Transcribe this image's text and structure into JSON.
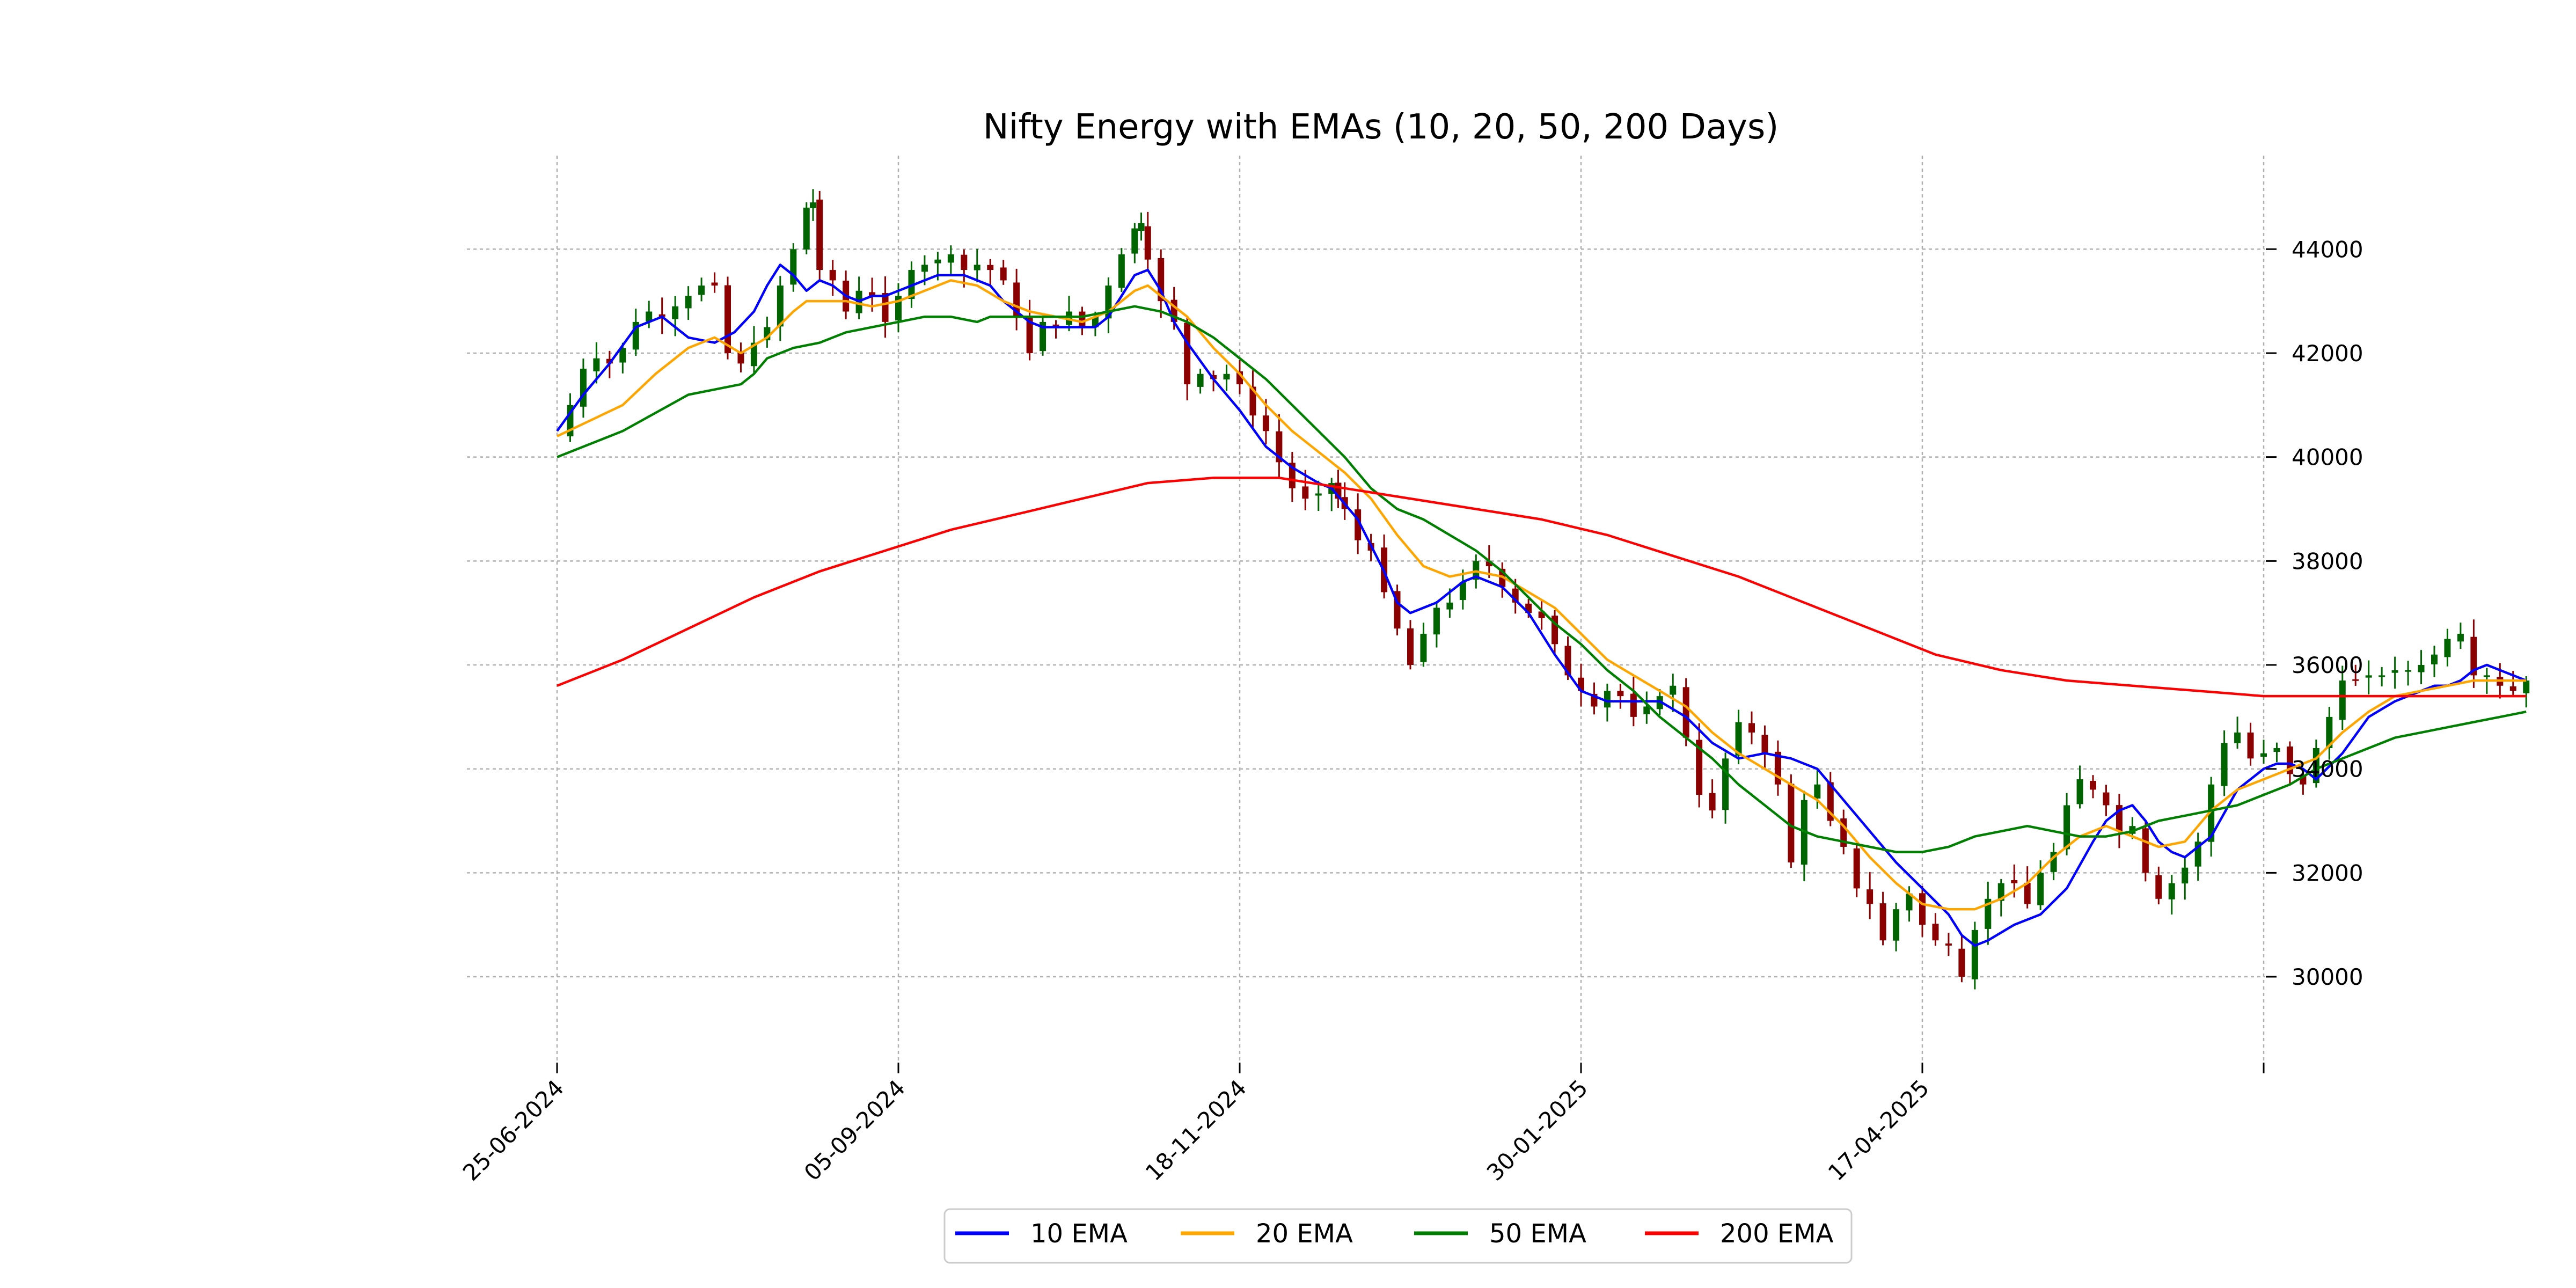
{
  "chart_data": {
    "type": "candlestick",
    "title": "Nifty Energy with EMAs (10, 20, 50, 200 Days)",
    "xlabel": "",
    "ylabel": "",
    "ylim": [
      28400,
      45800
    ],
    "xlim": [
      "2024-06-25",
      "2025-07-01"
    ],
    "x_ticks": [
      "25-06-2024",
      "05-09-2024",
      "18-11-2024",
      "30-01-2025",
      "17-04-2025",
      ""
    ],
    "y_ticks": [
      30000,
      32000,
      34000,
      36000,
      38000,
      40000,
      42000,
      44000
    ],
    "y_axis_side": "right",
    "grid": true,
    "legend_position": "bottom-center",
    "colors": {
      "up": "#006400",
      "down": "#8b0000"
    },
    "close": [
      [
        0,
        40400
      ],
      [
        2,
        41000
      ],
      [
        4,
        41700
      ],
      [
        6,
        41900
      ],
      [
        8,
        41800
      ],
      [
        10,
        42100
      ],
      [
        12,
        42600
      ],
      [
        14,
        42800
      ],
      [
        16,
        42700
      ],
      [
        18,
        42900
      ],
      [
        20,
        43100
      ],
      [
        22,
        43300
      ],
      [
        24,
        43300
      ],
      [
        26,
        42000
      ],
      [
        28,
        41800
      ],
      [
        30,
        42200
      ],
      [
        32,
        42500
      ],
      [
        34,
        43300
      ],
      [
        36,
        44000
      ],
      [
        38,
        44800
      ],
      [
        39,
        44900
      ],
      [
        40,
        43600
      ],
      [
        42,
        43400
      ],
      [
        44,
        42800
      ],
      [
        46,
        43200
      ],
      [
        48,
        43100
      ],
      [
        50,
        42600
      ],
      [
        52,
        43100
      ],
      [
        54,
        43600
      ],
      [
        56,
        43700
      ],
      [
        58,
        43800
      ],
      [
        60,
        43900
      ],
      [
        62,
        43600
      ],
      [
        64,
        43700
      ],
      [
        66,
        43600
      ],
      [
        68,
        43400
      ],
      [
        70,
        42700
      ],
      [
        72,
        42000
      ],
      [
        74,
        42600
      ],
      [
        76,
        42500
      ],
      [
        78,
        42800
      ],
      [
        80,
        42500
      ],
      [
        82,
        42700
      ],
      [
        84,
        43300
      ],
      [
        86,
        43900
      ],
      [
        88,
        44400
      ],
      [
        89,
        44500
      ],
      [
        90,
        43800
      ],
      [
        92,
        43000
      ],
      [
        94,
        42600
      ],
      [
        96,
        41400
      ],
      [
        98,
        41600
      ],
      [
        100,
        41500
      ],
      [
        102,
        41600
      ],
      [
        104,
        41400
      ],
      [
        106,
        40800
      ],
      [
        108,
        40500
      ],
      [
        110,
        39900
      ],
      [
        112,
        39400
      ],
      [
        114,
        39200
      ],
      [
        116,
        39300
      ],
      [
        118,
        39500
      ],
      [
        119,
        39200
      ],
      [
        120,
        39000
      ],
      [
        122,
        38400
      ],
      [
        124,
        38200
      ],
      [
        126,
        37400
      ],
      [
        128,
        36700
      ],
      [
        130,
        36000
      ],
      [
        132,
        36600
      ],
      [
        134,
        37100
      ],
      [
        136,
        37200
      ],
      [
        138,
        37600
      ],
      [
        140,
        38000
      ],
      [
        142,
        37900
      ],
      [
        144,
        37500
      ],
      [
        146,
        37200
      ],
      [
        148,
        37000
      ],
      [
        150,
        36900
      ],
      [
        152,
        36400
      ],
      [
        154,
        35800
      ],
      [
        156,
        35500
      ],
      [
        158,
        35200
      ],
      [
        160,
        35500
      ],
      [
        162,
        35400
      ],
      [
        164,
        35000
      ],
      [
        166,
        35200
      ],
      [
        168,
        35400
      ],
      [
        170,
        35600
      ],
      [
        172,
        34600
      ],
      [
        174,
        33500
      ],
      [
        176,
        33200
      ],
      [
        178,
        34200
      ],
      [
        180,
        34900
      ],
      [
        182,
        34700
      ],
      [
        184,
        34300
      ],
      [
        186,
        33700
      ],
      [
        188,
        32200
      ],
      [
        190,
        33400
      ],
      [
        192,
        33700
      ],
      [
        194,
        33000
      ],
      [
        196,
        32500
      ],
      [
        198,
        31700
      ],
      [
        200,
        31400
      ],
      [
        202,
        30700
      ],
      [
        204,
        31300
      ],
      [
        206,
        31600
      ],
      [
        208,
        31000
      ],
      [
        210,
        30700
      ],
      [
        212,
        30600
      ],
      [
        214,
        30000
      ],
      [
        216,
        30900
      ],
      [
        218,
        31500
      ],
      [
        220,
        31800
      ],
      [
        222,
        31800
      ],
      [
        224,
        31400
      ],
      [
        226,
        32000
      ],
      [
        228,
        32400
      ],
      [
        230,
        33300
      ],
      [
        232,
        33800
      ],
      [
        234,
        33600
      ],
      [
        236,
        33300
      ],
      [
        238,
        32800
      ],
      [
        240,
        32900
      ],
      [
        242,
        32000
      ],
      [
        244,
        31500
      ],
      [
        246,
        31800
      ],
      [
        248,
        32100
      ],
      [
        250,
        32600
      ],
      [
        252,
        33700
      ],
      [
        254,
        34500
      ],
      [
        256,
        34700
      ],
      [
        258,
        34200
      ],
      [
        260,
        34300
      ],
      [
        262,
        34400
      ],
      [
        264,
        33900
      ],
      [
        266,
        33700
      ],
      [
        268,
        34400
      ],
      [
        270,
        35000
      ],
      [
        272,
        35700
      ],
      [
        274,
        35700
      ],
      [
        276,
        35800
      ],
      [
        278,
        35800
      ],
      [
        280,
        35900
      ],
      [
        282,
        35900
      ],
      [
        284,
        36000
      ],
      [
        286,
        36200
      ],
      [
        288,
        36500
      ],
      [
        290,
        36600
      ],
      [
        292,
        35800
      ],
      [
        294,
        35800
      ],
      [
        296,
        35600
      ],
      [
        298,
        35500
      ],
      [
        300,
        35700
      ]
    ],
    "series": [
      {
        "name": "10 EMA",
        "color": "#0000ff",
        "x": [
          0,
          4,
          8,
          12,
          16,
          20,
          24,
          27,
          30,
          32,
          34,
          36,
          38,
          40,
          42,
          44,
          46,
          48,
          50,
          52,
          54,
          56,
          58,
          60,
          62,
          64,
          66,
          68,
          70,
          72,
          74,
          76,
          78,
          80,
          82,
          84,
          86,
          88,
          90,
          92,
          94,
          96,
          100,
          104,
          108,
          112,
          116,
          118,
          120,
          122,
          124,
          126,
          128,
          130,
          132,
          134,
          136,
          138,
          140,
          142,
          144,
          148,
          152,
          156,
          160,
          164,
          168,
          172,
          176,
          180,
          184,
          188,
          192,
          196,
          200,
          204,
          208,
          212,
          214,
          216,
          218,
          222,
          226,
          230,
          234,
          236,
          238,
          240,
          242,
          244,
          246,
          248,
          252,
          256,
          260,
          262,
          264,
          266,
          268,
          272,
          276,
          280,
          284,
          286,
          288,
          290,
          292,
          294,
          296,
          298,
          300
        ],
        "y": [
          40500,
          41200,
          41800,
          42500,
          42700,
          42300,
          42200,
          42400,
          42800,
          43300,
          43700,
          43500,
          43200,
          43400,
          43300,
          43100,
          43000,
          43100,
          43100,
          43200,
          43300,
          43400,
          43500,
          43500,
          43500,
          43400,
          43300,
          43000,
          42800,
          42600,
          42500,
          42500,
          42500,
          42500,
          42500,
          42700,
          43100,
          43500,
          43600,
          43200,
          42600,
          42200,
          41500,
          40900,
          40200,
          39800,
          39500,
          39400,
          39100,
          38800,
          38300,
          37800,
          37200,
          37000,
          37100,
          37200,
          37400,
          37600,
          37700,
          37600,
          37500,
          37000,
          36200,
          35500,
          35300,
          35300,
          35300,
          35000,
          34500,
          34200,
          34300,
          34200,
          34000,
          33400,
          32800,
          32200,
          31700,
          31200,
          30800,
          30600,
          30700,
          31000,
          31200,
          31700,
          32600,
          33000,
          33200,
          33300,
          33000,
          32600,
          32400,
          32300,
          32700,
          33600,
          34000,
          34100,
          34100,
          34000,
          33800,
          34300,
          35000,
          35300,
          35500,
          35600,
          35600,
          35700,
          35900,
          36000,
          35900,
          35800,
          35700
        ]
      },
      {
        "name": "20 EMA",
        "color": "#ffa500",
        "x": [
          0,
          5,
          10,
          15,
          20,
          24,
          28,
          32,
          36,
          38,
          40,
          44,
          48,
          52,
          56,
          60,
          64,
          68,
          72,
          76,
          80,
          84,
          88,
          90,
          92,
          96,
          100,
          104,
          108,
          112,
          116,
          120,
          124,
          128,
          132,
          136,
          140,
          144,
          148,
          152,
          156,
          160,
          164,
          168,
          172,
          176,
          180,
          184,
          188,
          192,
          196,
          200,
          204,
          208,
          212,
          216,
          220,
          224,
          228,
          232,
          236,
          240,
          244,
          248,
          252,
          256,
          260,
          264,
          268,
          272,
          276,
          280,
          284,
          288,
          292,
          296,
          300
        ],
        "y": [
          40400,
          40700,
          41000,
          41600,
          42100,
          42300,
          42000,
          42300,
          42800,
          43000,
          43000,
          43000,
          42900,
          43000,
          43200,
          43400,
          43300,
          43000,
          42800,
          42700,
          42600,
          42800,
          43200,
          43300,
          43100,
          42700,
          42100,
          41600,
          41000,
          40500,
          40100,
          39700,
          39200,
          38500,
          37900,
          37700,
          37800,
          37700,
          37400,
          37100,
          36600,
          36100,
          35800,
          35500,
          35200,
          34700,
          34300,
          34000,
          33700,
          33400,
          32900,
          32300,
          31800,
          31400,
          31300,
          31300,
          31500,
          31800,
          32300,
          32700,
          32900,
          32700,
          32500,
          32600,
          33200,
          33600,
          33800,
          34000,
          34200,
          34700,
          35100,
          35400,
          35500,
          35600,
          35700,
          35700,
          35700
        ]
      },
      {
        "name": "50 EMA",
        "color": "#008000",
        "x": [
          0,
          10,
          20,
          24,
          28,
          30,
          32,
          36,
          40,
          44,
          48,
          52,
          56,
          60,
          64,
          66,
          68,
          72,
          76,
          80,
          84,
          88,
          92,
          96,
          100,
          104,
          108,
          112,
          116,
          120,
          124,
          128,
          132,
          136,
          140,
          144,
          148,
          152,
          156,
          160,
          164,
          168,
          172,
          176,
          180,
          184,
          188,
          192,
          196,
          200,
          204,
          208,
          212,
          216,
          220,
          224,
          228,
          232,
          236,
          240,
          244,
          248,
          252,
          256,
          260,
          264,
          268,
          272,
          276,
          280,
          284,
          288,
          292,
          296,
          300
        ],
        "y": [
          40000,
          40500,
          41200,
          41300,
          41400,
          41600,
          41900,
          42100,
          42200,
          42400,
          42500,
          42600,
          42700,
          42700,
          42600,
          42700,
          42700,
          42700,
          42700,
          42700,
          42800,
          42900,
          42800,
          42600,
          42300,
          41900,
          41500,
          41000,
          40500,
          40000,
          39400,
          39000,
          38800,
          38500,
          38200,
          37800,
          37300,
          36800,
          36400,
          35900,
          35500,
          35000,
          34600,
          34200,
          33700,
          33300,
          32900,
          32700,
          32600,
          32500,
          32400,
          32400,
          32500,
          32700,
          32800,
          32900,
          32800,
          32700,
          32700,
          32800,
          33000,
          33100,
          33200,
          33300,
          33500,
          33700,
          34000,
          34200,
          34400,
          34600,
          34700,
          34800,
          34900,
          35000,
          35100
        ]
      },
      {
        "name": "200 EMA",
        "color": "#ff0000",
        "x": [
          0,
          10,
          20,
          30,
          40,
          50,
          60,
          70,
          80,
          90,
          100,
          110,
          120,
          130,
          140,
          150,
          160,
          170,
          180,
          190,
          200,
          210,
          220,
          230,
          240,
          250,
          260,
          270,
          280,
          290,
          300
        ],
        "y": [
          35600,
          36100,
          36700,
          37300,
          37800,
          38200,
          38600,
          38900,
          39200,
          39500,
          39600,
          39600,
          39400,
          39200,
          39000,
          38800,
          38500,
          38100,
          37700,
          37200,
          36700,
          36200,
          35900,
          35700,
          35600,
          35500,
          35400,
          35400,
          35400,
          35400,
          35400
        ]
      }
    ]
  }
}
